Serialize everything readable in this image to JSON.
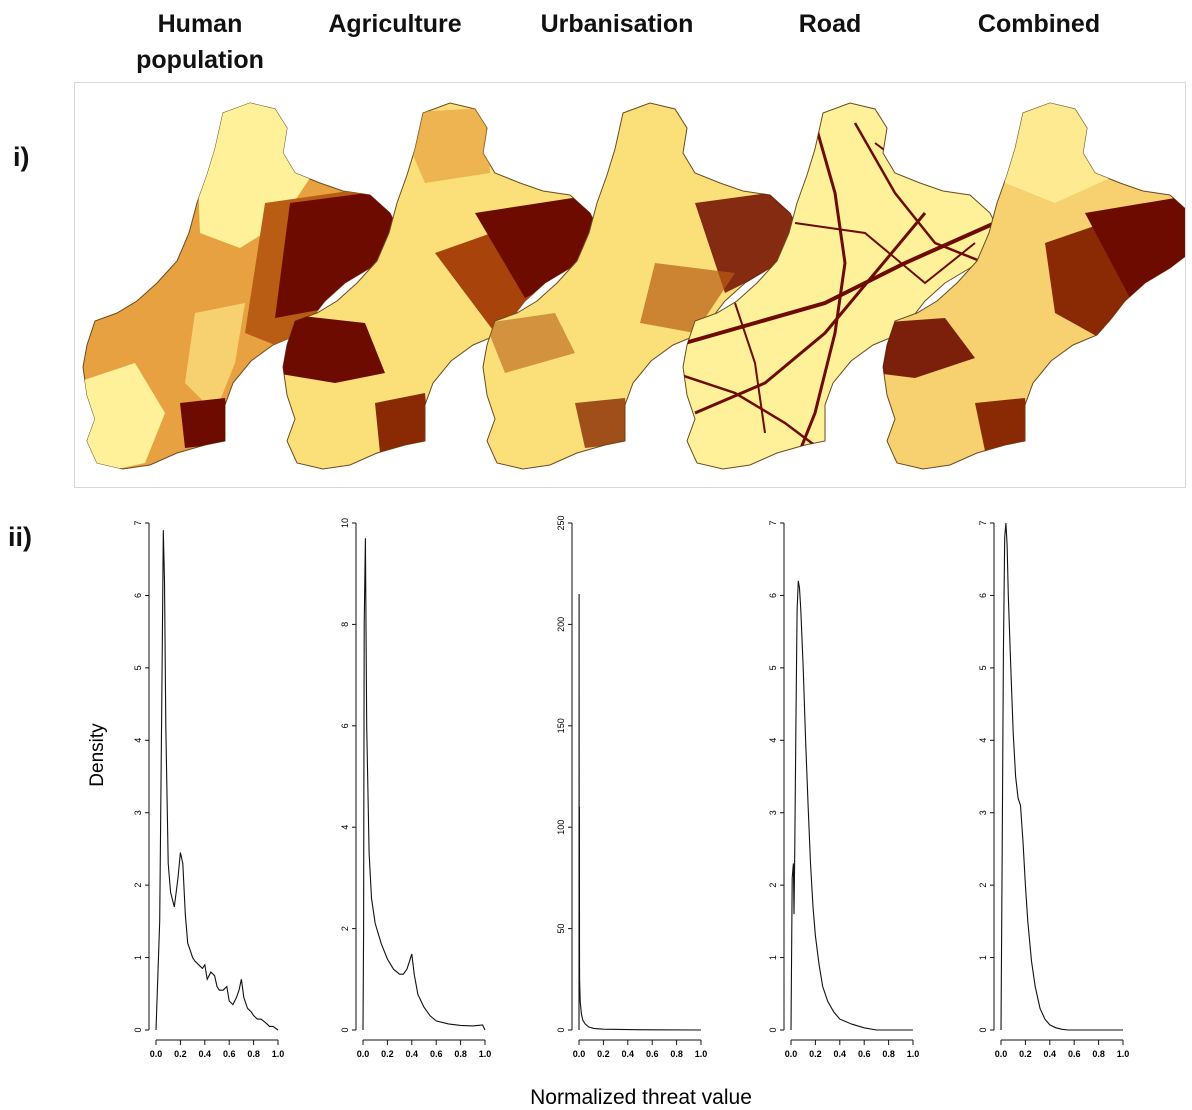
{
  "column_titles": [
    "Human population",
    "Agriculture",
    "Urbanisation",
    "Road",
    "Combined"
  ],
  "row_labels": {
    "maps": "i)",
    "density": "ii)"
  },
  "colors": {
    "pale": "#fff19a",
    "light": "#f7d070",
    "medium": "#e8a140",
    "dark_orange": "#b95d14",
    "dark": "#6e0b00",
    "line": "#111111"
  },
  "chart_data": {
    "type": "line",
    "xlabel": "Normalized threat value",
    "ylabel": "Density",
    "x_ticks": [
      "0.0",
      "0.2",
      "0.4",
      "0.6",
      "0.8",
      "1.0"
    ],
    "xlim": [
      0,
      1
    ],
    "panels": [
      {
        "name": "Human population",
        "ylim": [
          0,
          7
        ],
        "y_ticks": [
          "0",
          "1",
          "2",
          "3",
          "4",
          "5",
          "6",
          "7"
        ],
        "x": [
          0.0,
          0.03,
          0.05,
          0.06,
          0.07,
          0.08,
          0.1,
          0.12,
          0.15,
          0.18,
          0.2,
          0.22,
          0.24,
          0.26,
          0.28,
          0.3,
          0.32,
          0.35,
          0.38,
          0.4,
          0.42,
          0.45,
          0.48,
          0.5,
          0.52,
          0.55,
          0.58,
          0.6,
          0.63,
          0.66,
          0.68,
          0.7,
          0.72,
          0.75,
          0.78,
          0.8,
          0.83,
          0.86,
          0.9,
          0.93,
          0.96,
          1.0
        ],
        "y": [
          0.0,
          1.5,
          5.0,
          6.9,
          6.2,
          4.2,
          2.3,
          1.9,
          1.7,
          2.1,
          2.45,
          2.3,
          1.6,
          1.2,
          1.1,
          1.0,
          0.95,
          0.9,
          0.85,
          0.9,
          0.7,
          0.8,
          0.75,
          0.6,
          0.55,
          0.55,
          0.6,
          0.4,
          0.35,
          0.45,
          0.55,
          0.7,
          0.45,
          0.3,
          0.25,
          0.2,
          0.15,
          0.15,
          0.1,
          0.05,
          0.05,
          0.0
        ]
      },
      {
        "name": "Agriculture",
        "ylim": [
          0,
          10
        ],
        "y_ticks": [
          "0",
          "2",
          "4",
          "6",
          "8",
          "10"
        ],
        "x": [
          0.0,
          0.005,
          0.01,
          0.02,
          0.03,
          0.05,
          0.07,
          0.1,
          0.15,
          0.2,
          0.25,
          0.3,
          0.33,
          0.36,
          0.38,
          0.4,
          0.42,
          0.45,
          0.5,
          0.55,
          0.6,
          0.7,
          0.8,
          0.9,
          0.98,
          1.0
        ],
        "y": [
          0.0,
          2.0,
          8.0,
          9.7,
          6.0,
          3.5,
          2.6,
          2.1,
          1.7,
          1.4,
          1.2,
          1.1,
          1.1,
          1.2,
          1.35,
          1.5,
          1.1,
          0.7,
          0.45,
          0.28,
          0.18,
          0.12,
          0.09,
          0.08,
          0.1,
          0.0
        ]
      },
      {
        "name": "Urbanisation",
        "ylim": [
          0,
          250
        ],
        "y_ticks": [
          "0",
          "50",
          "100",
          "150",
          "200",
          "250"
        ],
        "x": [
          0.0,
          0.001,
          0.002,
          0.003,
          0.004,
          0.005,
          0.01,
          0.02,
          0.03,
          0.05,
          0.08,
          0.12,
          0.2,
          0.4,
          0.6,
          1.0
        ],
        "y": [
          0.0,
          215.0,
          55.0,
          110.0,
          40.0,
          25.0,
          14.0,
          8.0,
          5.0,
          3.0,
          1.5,
          0.8,
          0.4,
          0.2,
          0.1,
          0.0
        ]
      },
      {
        "name": "Road",
        "ylim": [
          0,
          7
        ],
        "y_ticks": [
          "0",
          "1",
          "2",
          "3",
          "4",
          "5",
          "6",
          "7"
        ],
        "x": [
          0.0,
          0.01,
          0.02,
          0.025,
          0.03,
          0.04,
          0.05,
          0.06,
          0.07,
          0.08,
          0.1,
          0.12,
          0.14,
          0.16,
          0.18,
          0.2,
          0.23,
          0.26,
          0.3,
          0.35,
          0.4,
          0.5,
          0.6,
          0.7,
          1.0
        ],
        "y": [
          0.0,
          2.1,
          2.3,
          1.6,
          2.4,
          4.2,
          5.8,
          6.2,
          6.1,
          5.8,
          5.0,
          4.0,
          3.1,
          2.3,
          1.7,
          1.3,
          0.9,
          0.6,
          0.4,
          0.25,
          0.15,
          0.08,
          0.03,
          0.0,
          0.0
        ]
      },
      {
        "name": "Combined",
        "ylim": [
          0,
          7
        ],
        "y_ticks": [
          "0",
          "1",
          "2",
          "3",
          "4",
          "5",
          "6",
          "7"
        ],
        "x": [
          0.0,
          0.01,
          0.02,
          0.03,
          0.04,
          0.05,
          0.06,
          0.08,
          0.1,
          0.12,
          0.14,
          0.16,
          0.18,
          0.2,
          0.22,
          0.25,
          0.28,
          0.32,
          0.36,
          0.4,
          0.45,
          0.5,
          0.55,
          0.6,
          1.0
        ],
        "y": [
          0.0,
          2.5,
          5.2,
          6.8,
          7.0,
          6.7,
          6.0,
          5.0,
          4.1,
          3.5,
          3.2,
          3.1,
          2.6,
          2.0,
          1.5,
          0.95,
          0.6,
          0.3,
          0.15,
          0.07,
          0.03,
          0.01,
          0.0,
          0.0,
          0.0
        ]
      }
    ]
  }
}
